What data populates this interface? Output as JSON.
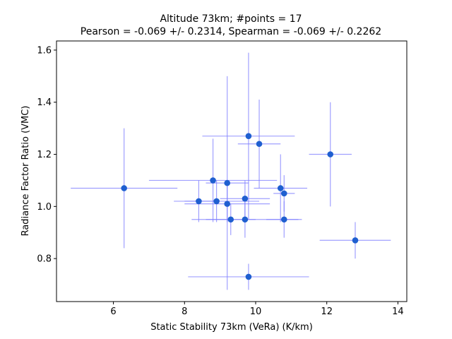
{
  "chart_data": {
    "type": "scatter",
    "title_line1": "Altitude 73km;  #points = 17",
    "title_line2": "Pearson = -0.069 +/-  0.2314, Spearman = -0.069 +/-  0.2262",
    "xlabel": "Static Stability 73km (VeRa) (K/km)",
    "ylabel": "Radiance Factor Ratio (VMC)",
    "xlim": [
      4.4,
      14.25
    ],
    "ylim": [
      0.635,
      1.635
    ],
    "x_ticks": [
      6,
      8,
      10,
      12,
      14
    ],
    "y_ticks": [
      0.8,
      1.0,
      1.2,
      1.4,
      1.6
    ],
    "x_tick_labels": [
      "6",
      "8",
      "10",
      "12",
      "14"
    ],
    "y_tick_labels": [
      "0.8",
      "1.0",
      "1.2",
      "1.4",
      "1.6"
    ],
    "grid": false,
    "colors": {
      "marker": "#1f5fd0",
      "errorbar": "#8080ff"
    },
    "points": [
      {
        "x": 6.3,
        "y": 1.07,
        "xerr": 1.5,
        "yerr": 0.23
      },
      {
        "x": 8.4,
        "y": 1.02,
        "xerr": 0.4,
        "yerr": 0.08
      },
      {
        "x": 8.8,
        "y": 1.1,
        "xerr": 1.8,
        "yerr": 0.16
      },
      {
        "x": 8.9,
        "y": 1.02,
        "xerr": 1.2,
        "yerr": 0.08
      },
      {
        "x": 9.2,
        "y": 1.09,
        "xerr": 0.6,
        "yerr": 0.41
      },
      {
        "x": 9.2,
        "y": 1.01,
        "xerr": 1.2,
        "yerr": 0.07
      },
      {
        "x": 9.3,
        "y": 0.95,
        "xerr": 0.7,
        "yerr": 0.06
      },
      {
        "x": 9.7,
        "y": 1.03,
        "xerr": 0.7,
        "yerr": 0.07
      },
      {
        "x": 9.7,
        "y": 0.95,
        "xerr": 1.5,
        "yerr": 0.07
      },
      {
        "x": 9.8,
        "y": 1.27,
        "xerr": 1.3,
        "yerr": 0.32
      },
      {
        "x": 9.8,
        "y": 0.73,
        "xerr": 1.7,
        "yerr": 0.05
      },
      {
        "x": 10.1,
        "y": 1.24,
        "xerr": 0.6,
        "yerr": 0.17
      },
      {
        "x": 10.7,
        "y": 1.07,
        "xerr": 0.75,
        "yerr": 0.13
      },
      {
        "x": 10.8,
        "y": 1.05,
        "xerr": 0.3,
        "yerr": 0.07
      },
      {
        "x": 10.8,
        "y": 0.95,
        "xerr": 0.5,
        "yerr": 0.07
      },
      {
        "x": 12.1,
        "y": 1.2,
        "xerr": 0.6,
        "yerr": 0.2
      },
      {
        "x": 12.8,
        "y": 0.87,
        "xerr": 1.0,
        "yerr": 0.07
      }
    ]
  }
}
